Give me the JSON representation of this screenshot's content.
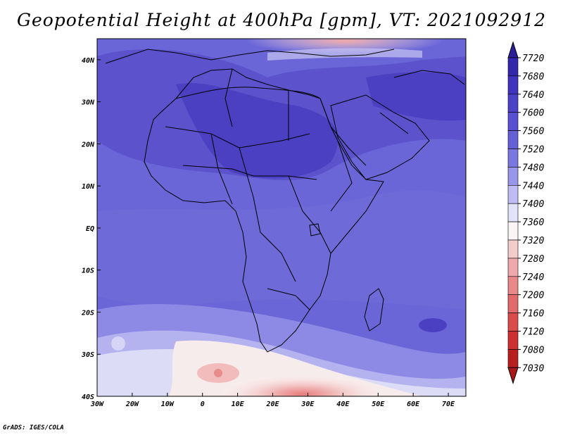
{
  "title": "Geopotential Height at 400hPa [gpm], VT: 2021092912",
  "footer": "GrADS: IGES/COLA",
  "map": {
    "variable": "Geopotential Height",
    "level": "400hPa",
    "units": "gpm",
    "valid_time": "2021092912",
    "lon_range": [
      -30,
      75
    ],
    "lat_range": [
      -40,
      45
    ],
    "lon_ticks": [
      {
        "value": -30,
        "label": "30W"
      },
      {
        "value": -20,
        "label": "20W"
      },
      {
        "value": -10,
        "label": "10W"
      },
      {
        "value": 0,
        "label": "0"
      },
      {
        "value": 10,
        "label": "10E"
      },
      {
        "value": 20,
        "label": "20E"
      },
      {
        "value": 30,
        "label": "30E"
      },
      {
        "value": 40,
        "label": "40E"
      },
      {
        "value": 50,
        "label": "50E"
      },
      {
        "value": 60,
        "label": "60E"
      },
      {
        "value": 70,
        "label": "70E"
      }
    ],
    "lat_ticks": [
      {
        "value": 40,
        "label": "40N"
      },
      {
        "value": 30,
        "label": "30N"
      },
      {
        "value": 20,
        "label": "20N"
      },
      {
        "value": 10,
        "label": "10N"
      },
      {
        "value": 0,
        "label": "EQ"
      },
      {
        "value": -10,
        "label": "10S"
      },
      {
        "value": -20,
        "label": "20S"
      },
      {
        "value": -30,
        "label": "30S"
      },
      {
        "value": -40,
        "label": "40S"
      }
    ]
  },
  "colorbar": {
    "levels": [
      7720,
      7680,
      7640,
      7600,
      7560,
      7520,
      7480,
      7440,
      7400,
      7360,
      7320,
      7280,
      7240,
      7200,
      7160,
      7120,
      7080,
      7030
    ],
    "colors": [
      "#2a1e9a",
      "#3328ab",
      "#4034be",
      "#4b42c8",
      "#5850d0",
      "#6560d6",
      "#7a78e0",
      "#9896ea",
      "#bebcf2",
      "#e2e2f8",
      "#fbf4f4",
      "#f4cccc",
      "#eeaaaa",
      "#e88888",
      "#e26a6a",
      "#da4c4c",
      "#cc3030",
      "#b82020",
      "#a81818"
    ]
  }
}
